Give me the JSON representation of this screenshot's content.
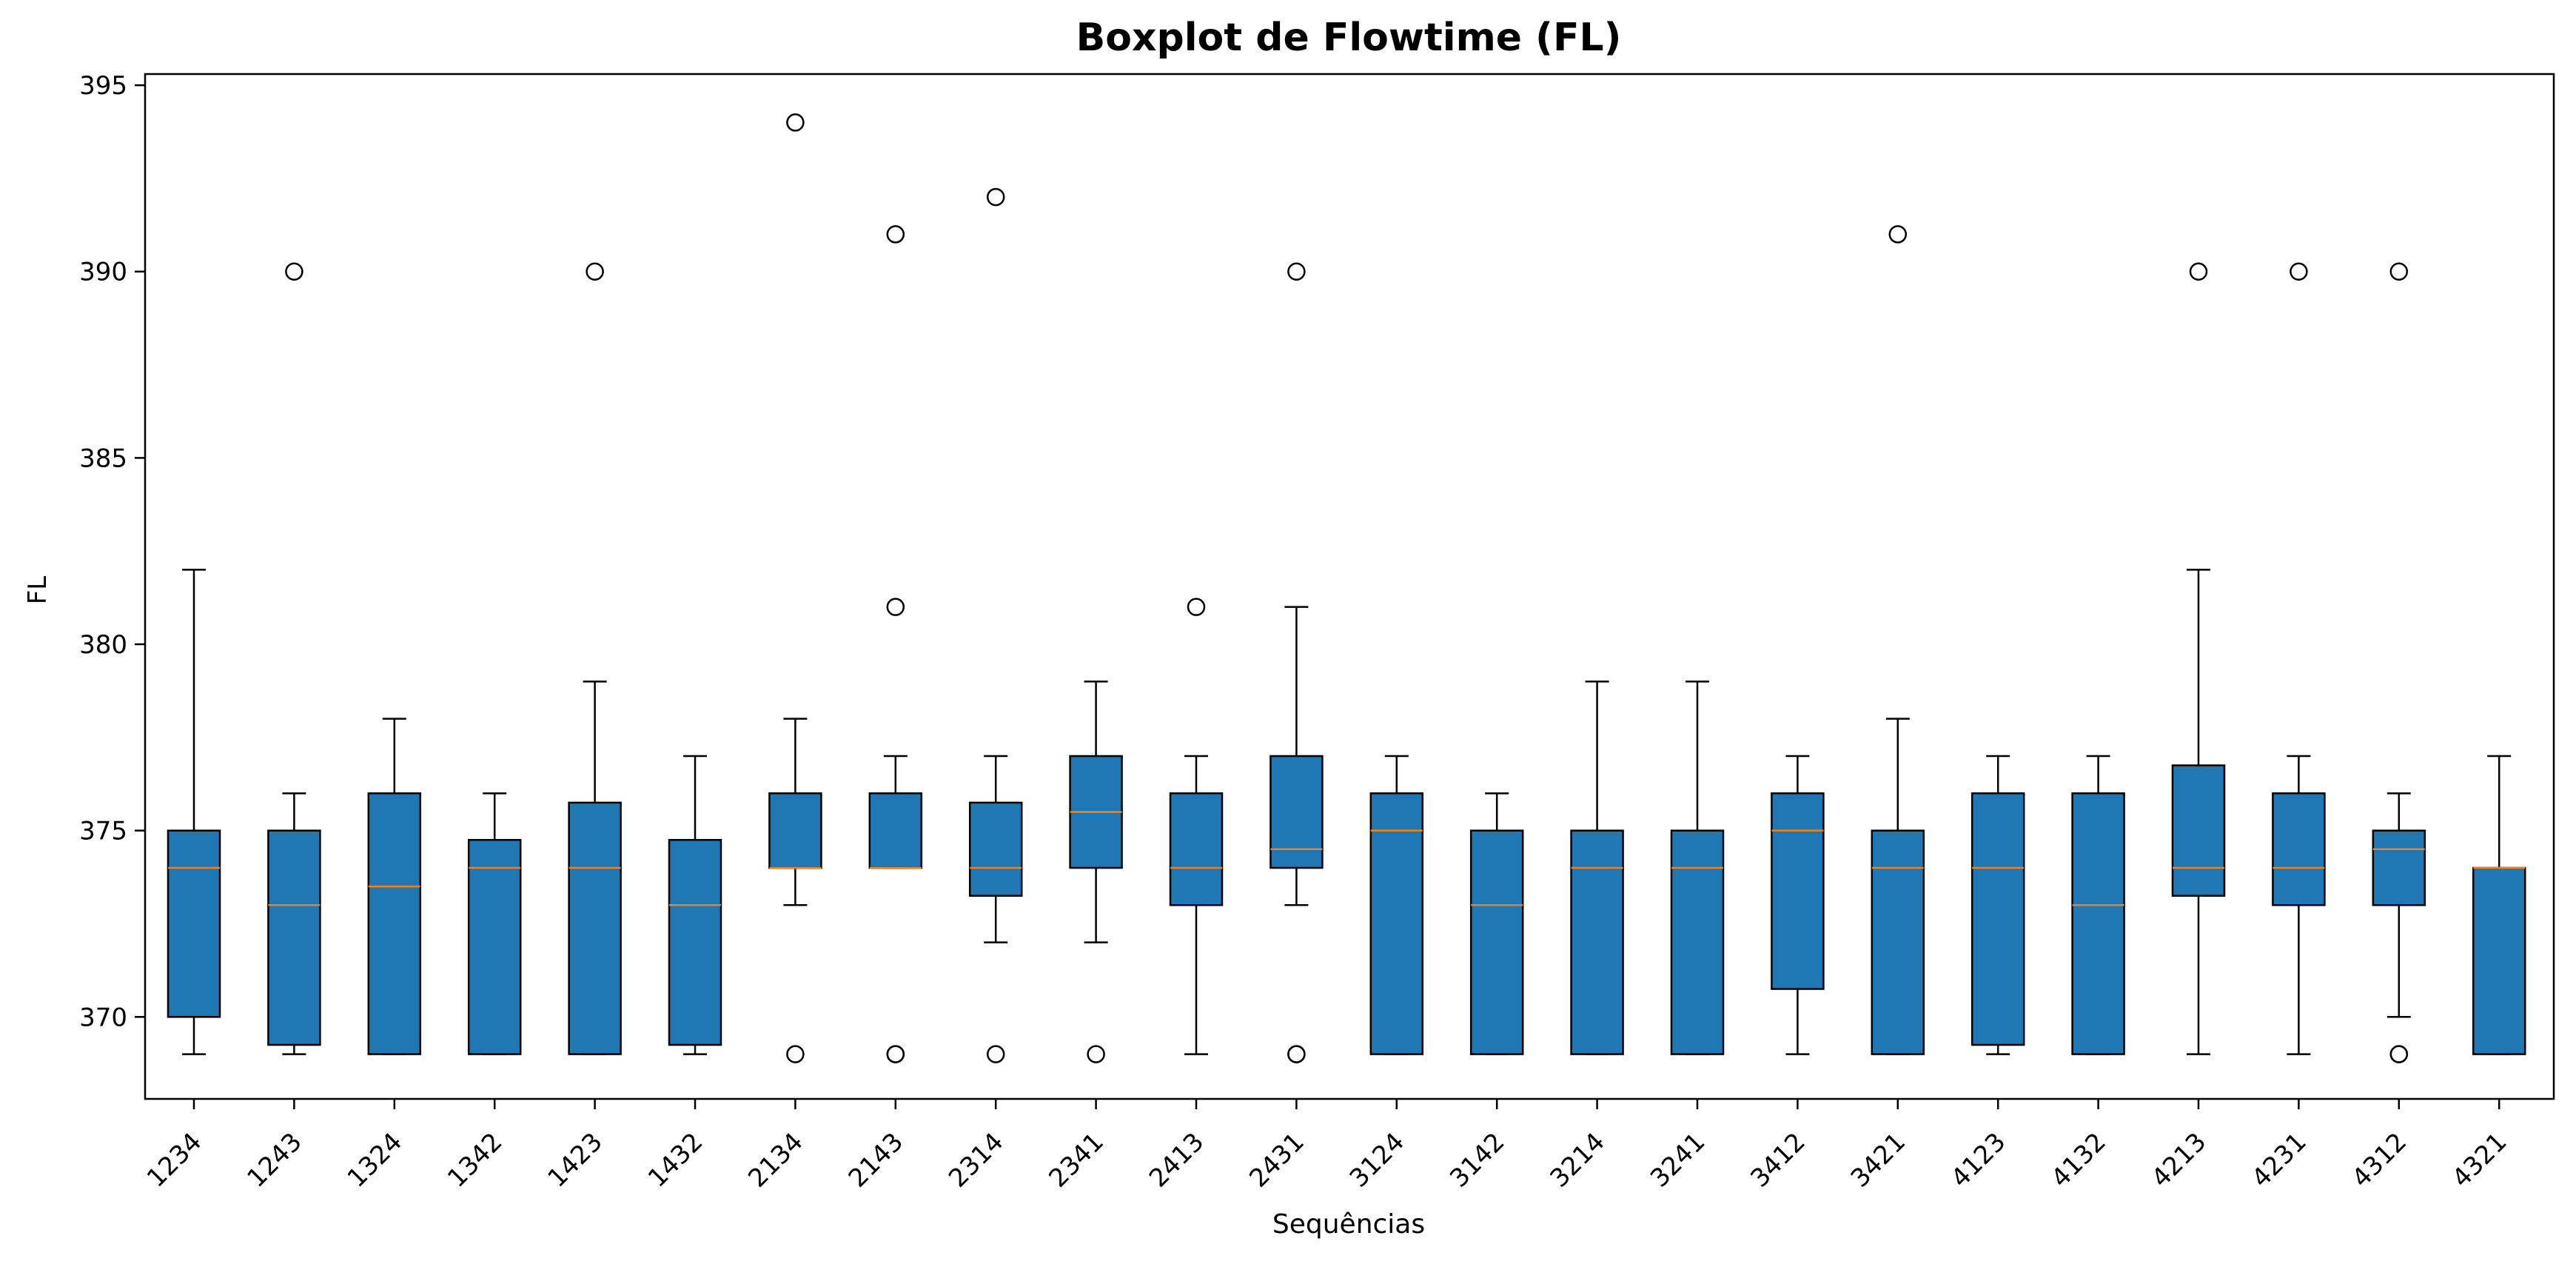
{
  "chart_data": {
    "type": "box",
    "title": "Boxplot de Flowtime (FL)",
    "xlabel": "Sequências",
    "ylabel": "FL",
    "ylim": [
      367.8,
      395.3
    ],
    "yticks": [
      370,
      375,
      380,
      385,
      390,
      395
    ],
    "grid": false,
    "legend": "none",
    "colors": {
      "box_fill": "#1f77b4",
      "median": "#ff7f0e",
      "line": "#000000"
    },
    "categories": [
      "1234",
      "1243",
      "1324",
      "1342",
      "1423",
      "1432",
      "2134",
      "2143",
      "2314",
      "2341",
      "2413",
      "2431",
      "3124",
      "3142",
      "3214",
      "3241",
      "3412",
      "3421",
      "4123",
      "4132",
      "4213",
      "4231",
      "4312",
      "4321"
    ],
    "boxes": [
      {
        "category": "1234",
        "whislo": 369,
        "q1": 370,
        "med": 374,
        "q3": 375,
        "whishi": 382,
        "fliers": []
      },
      {
        "category": "1243",
        "whislo": 369,
        "q1": 369.25,
        "med": 373,
        "q3": 375,
        "whishi": 376,
        "fliers": [
          390
        ]
      },
      {
        "category": "1324",
        "whislo": 369,
        "q1": 369,
        "med": 373.5,
        "q3": 376,
        "whishi": 378,
        "fliers": []
      },
      {
        "category": "1342",
        "whislo": 369,
        "q1": 369,
        "med": 374,
        "q3": 374.75,
        "whishi": 376,
        "fliers": []
      },
      {
        "category": "1423",
        "whislo": 369,
        "q1": 369,
        "med": 374,
        "q3": 375.75,
        "whishi": 379,
        "fliers": [
          390
        ]
      },
      {
        "category": "1432",
        "whislo": 369,
        "q1": 369.25,
        "med": 373,
        "q3": 374.75,
        "whishi": 377,
        "fliers": []
      },
      {
        "category": "2134",
        "whislo": 373,
        "q1": 374,
        "med": 374,
        "q3": 376,
        "whishi": 378,
        "fliers": [
          394,
          369
        ]
      },
      {
        "category": "2143",
        "whislo": 374,
        "q1": 374,
        "med": 374,
        "q3": 376,
        "whishi": 377,
        "fliers": [
          391,
          381,
          369,
          369
        ]
      },
      {
        "category": "2314",
        "whislo": 372,
        "q1": 373.25,
        "med": 374,
        "q3": 375.75,
        "whishi": 377,
        "fliers": [
          392,
          369
        ]
      },
      {
        "category": "2341",
        "whislo": 372,
        "q1": 374,
        "med": 375.5,
        "q3": 377,
        "whishi": 379,
        "fliers": [
          369
        ]
      },
      {
        "category": "2413",
        "whislo": 369,
        "q1": 373,
        "med": 374,
        "q3": 376,
        "whishi": 377,
        "fliers": [
          381
        ]
      },
      {
        "category": "2431",
        "whislo": 373,
        "q1": 374,
        "med": 374.5,
        "q3": 377,
        "whishi": 381,
        "fliers": [
          390,
          369,
          369
        ]
      },
      {
        "category": "3124",
        "whislo": 369,
        "q1": 369,
        "med": 375,
        "q3": 376,
        "whishi": 377,
        "fliers": []
      },
      {
        "category": "3142",
        "whislo": 369,
        "q1": 369,
        "med": 373,
        "q3": 375,
        "whishi": 376,
        "fliers": []
      },
      {
        "category": "3214",
        "whislo": 369,
        "q1": 369,
        "med": 374,
        "q3": 375,
        "whishi": 379,
        "fliers": []
      },
      {
        "category": "3241",
        "whislo": 369,
        "q1": 369,
        "med": 374,
        "q3": 375,
        "whishi": 379,
        "fliers": []
      },
      {
        "category": "3412",
        "whislo": 369,
        "q1": 370.75,
        "med": 375,
        "q3": 376,
        "whishi": 377,
        "fliers": []
      },
      {
        "category": "3421",
        "whislo": 369,
        "q1": 369,
        "med": 374,
        "q3": 375,
        "whishi": 378,
        "fliers": [
          391
        ]
      },
      {
        "category": "4123",
        "whislo": 369,
        "q1": 369.25,
        "med": 374,
        "q3": 376,
        "whishi": 377,
        "fliers": []
      },
      {
        "category": "4132",
        "whislo": 369,
        "q1": 369,
        "med": 373,
        "q3": 376,
        "whishi": 377,
        "fliers": []
      },
      {
        "category": "4213",
        "whislo": 369,
        "q1": 373.25,
        "med": 374,
        "q3": 376.75,
        "whishi": 382,
        "fliers": [
          390
        ]
      },
      {
        "category": "4231",
        "whislo": 369,
        "q1": 373,
        "med": 374,
        "q3": 376,
        "whishi": 377,
        "fliers": [
          390
        ]
      },
      {
        "category": "4312",
        "whislo": 370,
        "q1": 373,
        "med": 374.5,
        "q3": 375,
        "whishi": 376,
        "fliers": [
          390,
          369,
          369
        ]
      },
      {
        "category": "4321",
        "whislo": 369,
        "q1": 369,
        "med": 374,
        "q3": 374,
        "whishi": 377,
        "fliers": []
      }
    ]
  }
}
